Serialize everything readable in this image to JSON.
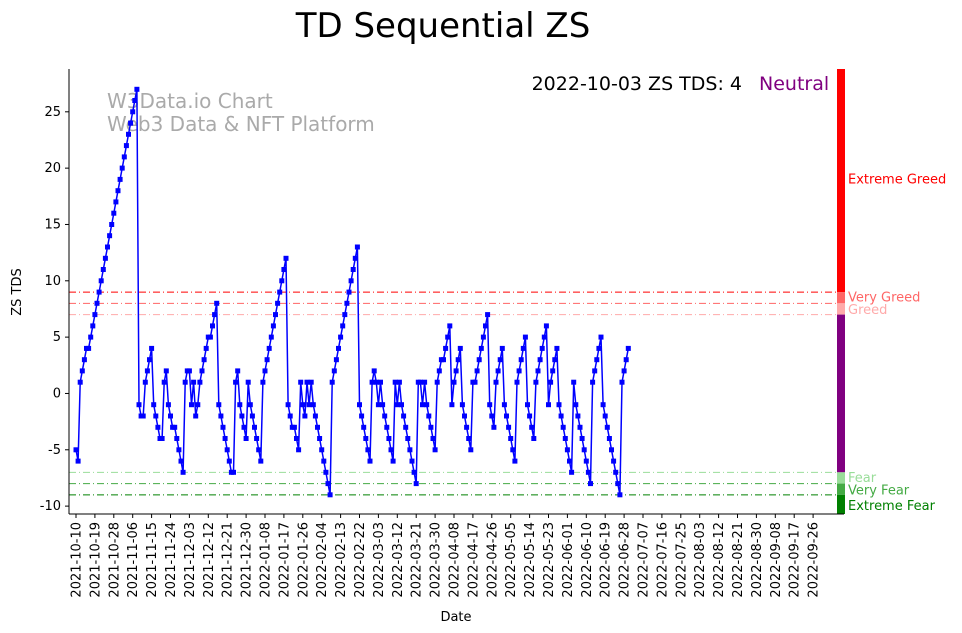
{
  "chart_data": {
    "type": "line",
    "title": "TD Sequential ZS",
    "xlabel": "Date",
    "ylabel": "ZS TDS",
    "ylim": [
      -10.7,
      28.8
    ],
    "yticks": [
      -10,
      -5,
      0,
      5,
      10,
      15,
      20,
      25
    ],
    "xticks": [
      "2021-10-10",
      "2021-10-19",
      "2021-10-28",
      "2021-11-06",
      "2021-11-15",
      "2021-11-24",
      "2021-12-03",
      "2021-12-12",
      "2021-12-21",
      "2021-12-30",
      "2022-01-08",
      "2022-01-17",
      "2022-01-26",
      "2022-02-04",
      "2022-02-13",
      "2022-02-22",
      "2022-03-03",
      "2022-03-12",
      "2022-03-21",
      "2022-03-30",
      "2022-04-08",
      "2022-04-17",
      "2022-04-26",
      "2022-05-05",
      "2022-05-14",
      "2022-05-23",
      "2022-06-01",
      "2022-06-10",
      "2022-06-19",
      "2022-06-28",
      "2022-07-07",
      "2022-07-16",
      "2022-07-25",
      "2022-08-03",
      "2022-08-12",
      "2022-08-21",
      "2022-08-30",
      "2022-09-08",
      "2022-09-17",
      "2022-09-26"
    ],
    "watermark": [
      "W3Data.io Chart",
      "Web3 Data & NFT Platform"
    ],
    "annotation": {
      "text": "2022-10-03 ZS TDS: 4",
      "status": "Neutral",
      "status_color": "#800080"
    },
    "thresholds": [
      {
        "value": 9,
        "label": "Extreme Greed",
        "color": "#ff0000"
      },
      {
        "value": 8,
        "label": "Very Greed",
        "color": "#ff6666"
      },
      {
        "value": 7,
        "label": "Greed",
        "color": "#ffaaaa"
      },
      {
        "value": -7,
        "label": "Fear",
        "color": "#99dd99"
      },
      {
        "value": -8,
        "label": "Very Fear",
        "color": "#44aa44"
      },
      {
        "value": -9,
        "label": "Extreme Fear",
        "color": "#008000"
      }
    ],
    "side_labels": [
      {
        "label": "Extreme Greed",
        "y": 19,
        "color": "#ff0000"
      },
      {
        "label": "Very Greed",
        "y": 8.5,
        "color": "#ff6666"
      },
      {
        "label": "Greed",
        "y": 7.4,
        "color": "#ffaaaa"
      },
      {
        "label": "Fear",
        "y": -7.5,
        "color": "#99dd99"
      },
      {
        "label": "Very Fear",
        "y": -8.6,
        "color": "#44aa44"
      },
      {
        "label": "Extreme Fear",
        "y": -10,
        "color": "#008000"
      }
    ],
    "side_bar": [
      {
        "from": 9,
        "to": 28.8,
        "color": "#ff0000"
      },
      {
        "from": 8,
        "to": 9,
        "color": "#ff6666"
      },
      {
        "from": 7,
        "to": 8,
        "color": "#ffaaaa"
      },
      {
        "from": -7,
        "to": 7,
        "color": "#800080"
      },
      {
        "from": -8,
        "to": -7,
        "color": "#99dd99"
      },
      {
        "from": -9,
        "to": -8,
        "color": "#44aa44"
      },
      {
        "from": -10.7,
        "to": -9,
        "color": "#008000"
      }
    ],
    "series": [
      {
        "name": "ZS TDS",
        "color": "#0000ff",
        "start_date": "2021-10-10",
        "values": [
          -5,
          -6,
          1,
          2,
          3,
          4,
          4,
          5,
          6,
          7,
          8,
          9,
          10,
          11,
          12,
          13,
          14,
          15,
          16,
          17,
          18,
          19,
          20,
          21,
          22,
          23,
          24,
          25,
          26,
          27,
          -1,
          -2,
          -2,
          1,
          2,
          3,
          4,
          -1,
          -2,
          -3,
          -4,
          -4,
          1,
          2,
          -1,
          -2,
          -3,
          -3,
          -4,
          -5,
          -6,
          -7,
          1,
          2,
          2,
          -1,
          1,
          -2,
          -1,
          1,
          2,
          3,
          4,
          5,
          5,
          6,
          7,
          8,
          -1,
          -2,
          -3,
          -4,
          -5,
          -6,
          -7,
          -7,
          1,
          2,
          -1,
          -2,
          -3,
          -4,
          1,
          -1,
          -2,
          -3,
          -4,
          -5,
          -6,
          1,
          2,
          3,
          4,
          5,
          6,
          7,
          8,
          9,
          10,
          11,
          12,
          -1,
          -2,
          -3,
          -3,
          -4,
          -5,
          1,
          -1,
          -2,
          1,
          -1,
          1,
          -1,
          -2,
          -3,
          -4,
          -5,
          -6,
          -7,
          -8,
          -9,
          1,
          2,
          3,
          4,
          5,
          6,
          7,
          8,
          9,
          10,
          11,
          12,
          13,
          -1,
          -2,
          -3,
          -4,
          -5,
          -6,
          1,
          2,
          1,
          -1,
          1,
          -1,
          -2,
          -3,
          -4,
          -5,
          -6,
          1,
          -1,
          1,
          -1,
          -2,
          -3,
          -4,
          -5,
          -6,
          -7,
          -8,
          1,
          1,
          -1,
          1,
          -1,
          -2,
          -3,
          -4,
          -5,
          1,
          2,
          3,
          3,
          4,
          5,
          6,
          -1,
          1,
          2,
          3,
          4,
          -1,
          -2,
          -3,
          -4,
          -5,
          1,
          1,
          2,
          3,
          4,
          5,
          6,
          7,
          -1,
          -2,
          -3,
          1,
          2,
          3,
          4,
          -1,
          -2,
          -3,
          -4,
          -5,
          -6,
          1,
          2,
          3,
          4,
          5,
          -1,
          -2,
          -3,
          -4,
          1,
          2,
          3,
          4,
          5,
          6,
          -1,
          1,
          2,
          3,
          4,
          -1,
          -2,
          -3,
          -4,
          -5,
          -6,
          -7,
          1,
          -1,
          -2,
          -3,
          -4,
          -5,
          -6,
          -7,
          -8,
          1,
          2,
          3,
          4,
          5,
          -1,
          -2,
          -3,
          -4,
          -5,
          -6,
          -7,
          -8,
          -9,
          1,
          2,
          3,
          4
        ]
      }
    ]
  }
}
